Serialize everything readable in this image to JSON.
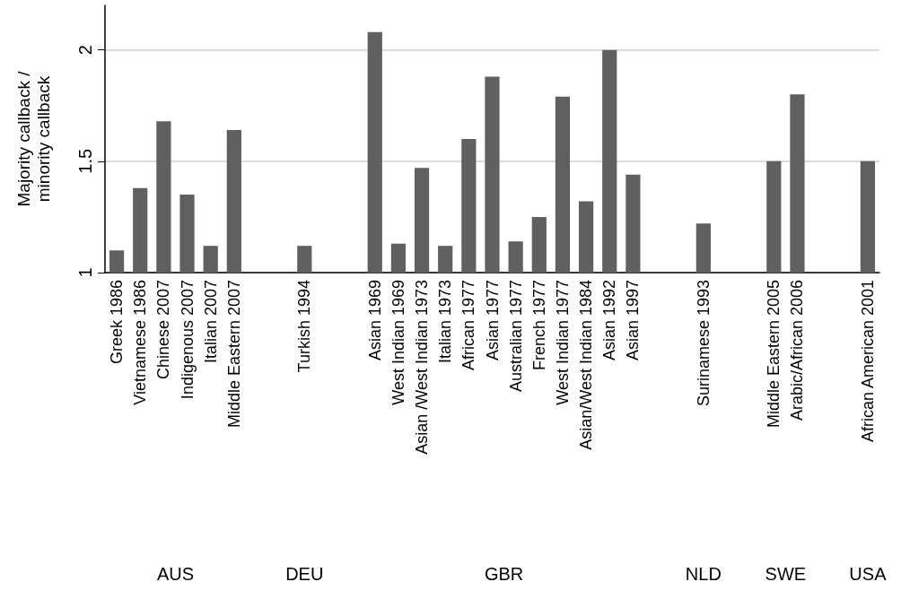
{
  "chart_data": {
    "type": "bar",
    "ylabel": "Majority callback / minority callback",
    "categories": [
      "Greek 1986",
      "Vietnamese 1986",
      "Chinese 2007",
      "Indigenous 2007",
      "Italian 2007",
      "Middle Eastern 2007",
      null,
      null,
      "Turkish 1994",
      null,
      null,
      "Asian 1969",
      "West Indian 1969",
      "Asian /West Indian 1973",
      "Italian 1973",
      "African 1977",
      "Asian 1977",
      "Australian 1977",
      "French 1977",
      "West Indian 1977",
      "Asian/West Indian 1984",
      "Asian 1992",
      "Asian 1997",
      null,
      null,
      "Surinamese 1993",
      null,
      null,
      "Middle Eastern 2005",
      "Arabic/African 2006",
      null,
      null,
      "African American 2001"
    ],
    "values": [
      1.1,
      1.38,
      1.68,
      1.35,
      1.12,
      1.64,
      null,
      null,
      1.12,
      null,
      null,
      2.08,
      1.13,
      1.47,
      1.12,
      1.6,
      1.88,
      1.14,
      1.25,
      1.79,
      1.32,
      2.0,
      1.44,
      null,
      null,
      1.22,
      null,
      null,
      1.5,
      1.8,
      null,
      null,
      1.5
    ],
    "color": "#606060",
    "ylim": [
      1,
      2.2
    ],
    "yticks": [
      1,
      1.5,
      2
    ],
    "grid": "y",
    "annotations": [
      "AUS",
      "DEU",
      "GBR",
      "NLD",
      "SWE",
      "USA"
    ]
  }
}
